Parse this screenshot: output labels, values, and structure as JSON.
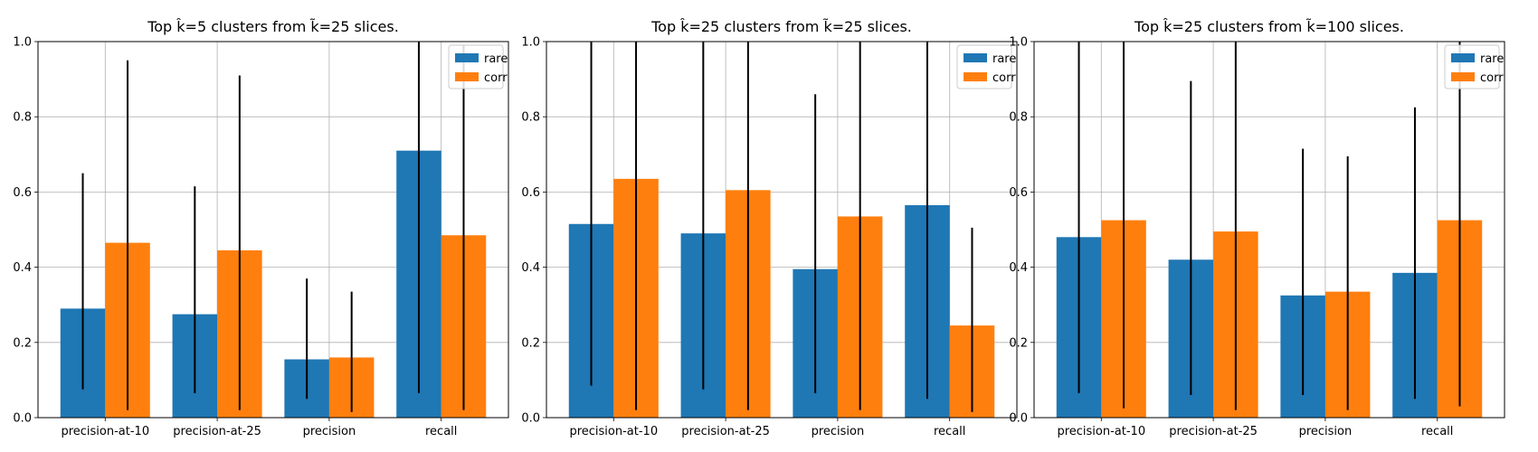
{
  "figure": {
    "background": "#ffffff"
  },
  "colors": {
    "rare": "#1f77b4",
    "corr": "#ff7f0e",
    "errorbar": "#000000",
    "grid": "#b0b0b0"
  },
  "chart_data": [
    {
      "type": "bar",
      "title": "Top k̂=5 clusters from k̃=25 slices.",
      "categories": [
        "precision-at-10",
        "precision-at-25",
        "precision",
        "recall"
      ],
      "ylim": [
        0,
        1.0
      ],
      "yticks": [
        "0.0",
        "0.2",
        "0.4",
        "0.6",
        "0.8",
        "1.0"
      ],
      "grid": true,
      "legend": {
        "placement": "top-right",
        "entries": [
          "rare",
          "corr"
        ]
      },
      "series": [
        {
          "name": "rare",
          "values": [
            0.29,
            0.275,
            0.155,
            0.71
          ],
          "err_low": [
            0.075,
            0.065,
            0.05,
            0.065
          ],
          "err_high": [
            0.65,
            0.615,
            0.37,
            1.0
          ]
        },
        {
          "name": "corr",
          "values": [
            0.465,
            0.445,
            0.16,
            0.485
          ],
          "err_low": [
            0.02,
            0.02,
            0.015,
            0.02
          ],
          "err_high": [
            0.95,
            0.91,
            0.335,
            0.99
          ]
        }
      ]
    },
    {
      "type": "bar",
      "title": "Top k̂=25 clusters from k̃=25 slices.",
      "categories": [
        "precision-at-10",
        "precision-at-25",
        "precision",
        "recall"
      ],
      "ylim": [
        0,
        1.0
      ],
      "yticks": [
        "0.0",
        "0.2",
        "0.4",
        "0.6",
        "0.8",
        "1.0"
      ],
      "grid": true,
      "legend": {
        "placement": "top-right",
        "entries": [
          "rare",
          "corr"
        ]
      },
      "series": [
        {
          "name": "rare",
          "values": [
            0.515,
            0.49,
            0.395,
            0.565
          ],
          "err_low": [
            0.085,
            0.075,
            0.065,
            0.05
          ],
          "err_high": [
            1.0,
            1.0,
            0.86,
            1.0
          ]
        },
        {
          "name": "corr",
          "values": [
            0.635,
            0.605,
            0.535,
            0.245
          ],
          "err_low": [
            0.02,
            0.02,
            0.02,
            0.015
          ],
          "err_high": [
            1.0,
            1.0,
            1.0,
            0.505
          ]
        }
      ]
    },
    {
      "type": "bar",
      "title": "Top k̂=25 clusters from k̃=100 slices.",
      "categories": [
        "precision-at-10",
        "precision-at-25",
        "precision",
        "recall"
      ],
      "ylim": [
        0,
        1.0
      ],
      "yticks": [
        "0.0",
        "0.2",
        "0.4",
        "0.6",
        "0.8",
        "1.0"
      ],
      "grid": true,
      "legend": {
        "placement": "top-right",
        "entries": [
          "rare",
          "corr"
        ]
      },
      "series": [
        {
          "name": "rare",
          "values": [
            0.48,
            0.42,
            0.325,
            0.385
          ],
          "err_low": [
            0.065,
            0.06,
            0.06,
            0.05
          ],
          "err_high": [
            1.0,
            0.895,
            0.715,
            0.825
          ]
        },
        {
          "name": "corr",
          "values": [
            0.525,
            0.495,
            0.335,
            0.525
          ],
          "err_low": [
            0.025,
            0.02,
            0.02,
            0.03
          ],
          "err_high": [
            1.0,
            1.0,
            0.695,
            1.0
          ]
        }
      ]
    }
  ]
}
